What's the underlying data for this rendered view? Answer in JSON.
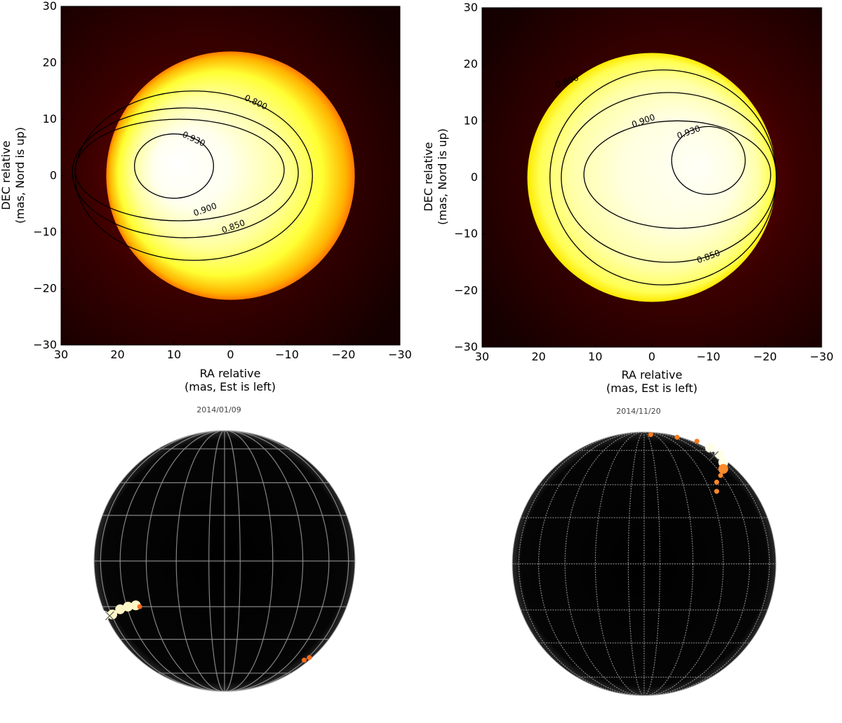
{
  "chart_data": [
    {
      "type": "heatmap",
      "title": "",
      "xlabel": "RA relative",
      "xlabel2": "(mas, Est is left)",
      "ylabel": "DEC relative",
      "ylabel2": "(mas, Nord is up)",
      "xlim": [
        30,
        -30
      ],
      "ylim": [
        -30,
        30
      ],
      "xticks": [
        30,
        20,
        10,
        0,
        -10,
        -20,
        -30
      ],
      "yticks": [
        -30,
        -20,
        -10,
        0,
        10,
        20,
        30
      ],
      "xtick_labels": [
        "30",
        "20",
        "10",
        "0",
        "−10",
        "−20",
        "−30"
      ],
      "ytick_labels": [
        "−30",
        "−20",
        "−10",
        "0",
        "10",
        "20",
        "30"
      ],
      "disk": {
        "center": [
          0,
          0
        ],
        "radius": 22
      },
      "peak": [
        10,
        2
      ],
      "contours": [
        {
          "level": 0.8,
          "label": "0.800",
          "center": [
            6.5,
            0
          ],
          "rx": 21,
          "ry": 15,
          "label_at": [
            -4.5,
            13
          ]
        },
        {
          "level": 0.85,
          "label": "0.850",
          "center": [
            8,
            0.5
          ],
          "rx": 20,
          "ry": 11.5,
          "label_at": [
            -0.5,
            -9
          ]
        },
        {
          "level": 0.9,
          "label": "0.900",
          "center": [
            9,
            1
          ],
          "rx": 18.5,
          "ry": 9,
          "label_at": [
            4.5,
            -6
          ]
        },
        {
          "level": 0.93,
          "label": "0.930",
          "center": [
            10,
            1.7
          ],
          "rx": 7,
          "ry": 5.7,
          "label_at": [
            6.5,
            6.5
          ]
        }
      ]
    },
    {
      "type": "heatmap",
      "title": "",
      "xlabel": "RA relative",
      "xlabel2": "(mas, Est is left)",
      "ylabel": "DEC relative",
      "ylabel2": "(mas, Nord is up)",
      "xlim": [
        30,
        -30
      ],
      "ylim": [
        -30,
        30
      ],
      "xticks": [
        30,
        20,
        10,
        0,
        -10,
        -20,
        -30
      ],
      "yticks": [
        -30,
        -20,
        -10,
        0,
        10,
        20,
        30
      ],
      "xtick_labels": [
        "30",
        "20",
        "10",
        "0",
        "−10",
        "−20",
        "−30"
      ],
      "ytick_labels": [
        "−30",
        "−20",
        "−10",
        "0",
        "10",
        "20",
        "30"
      ],
      "disk": {
        "center": [
          0,
          0
        ],
        "radius": 22
      },
      "peak": [
        -9,
        2
      ],
      "contours": [
        {
          "level": 0.8,
          "label": "0.800",
          "center": [
            -2,
            0
          ],
          "rx": 20,
          "ry": 19,
          "label_at": [
            15,
            17
          ]
        },
        {
          "level": 0.85,
          "label": "0.850",
          "center": [
            -3,
            0
          ],
          "rx": 19,
          "ry": 15,
          "label_at": [
            -10,
            -14
          ]
        },
        {
          "level": 0.9,
          "label": "0.900",
          "center": [
            -4.5,
            0.5
          ],
          "rx": 16.5,
          "ry": 9.5,
          "label_at": [
            1.5,
            10
          ]
        },
        {
          "level": 0.93,
          "label": "0.930",
          "center": [
            -10,
            3
          ],
          "rx": 6.5,
          "ry": 6,
          "label_at": [
            -6.5,
            8
          ]
        }
      ]
    },
    {
      "type": "scatter",
      "title": "2014/01/09",
      "center": [
        320,
        800
      ],
      "radius": 186,
      "meridians": [
        0.12,
        0.37,
        0.6,
        0.8,
        0.95
      ],
      "parallels": [
        -0.86,
        -0.6,
        -0.35,
        0.0,
        0.35,
        0.6,
        0.86
      ],
      "spot_points": [
        [
          -0.97,
          0.38
        ],
        [
          -0.92,
          0.42
        ],
        [
          -0.86,
          0.41
        ],
        [
          -0.8,
          0.37
        ],
        [
          -0.74,
          0.35
        ],
        [
          -0.68,
          0.34
        ],
        [
          -0.65,
          0.35
        ],
        [
          0.61,
          0.76
        ],
        [
          0.65,
          0.74
        ]
      ],
      "marker": [
        -0.88,
        0.42
      ]
    },
    {
      "type": "scatter",
      "title": "2014/11/20",
      "center": [
        918,
        804
      ],
      "radius": 188,
      "meridians": [
        0.12,
        0.37,
        0.6,
        0.8,
        0.95
      ],
      "parallels": [
        -0.86,
        -0.6,
        -0.35,
        0.0,
        0.35,
        0.6,
        0.86
      ],
      "spot_points": [
        [
          0.05,
          -0.98
        ],
        [
          0.25,
          -0.96
        ],
        [
          0.4,
          -0.93
        ],
        [
          0.5,
          -0.88
        ],
        [
          0.57,
          -0.83
        ],
        [
          0.6,
          -0.77
        ],
        [
          0.6,
          -0.72
        ],
        [
          0.58,
          -0.67
        ],
        [
          0.55,
          -0.62
        ],
        [
          0.55,
          -0.55
        ]
      ],
      "marker": [
        0.53,
        -0.82
      ]
    }
  ]
}
